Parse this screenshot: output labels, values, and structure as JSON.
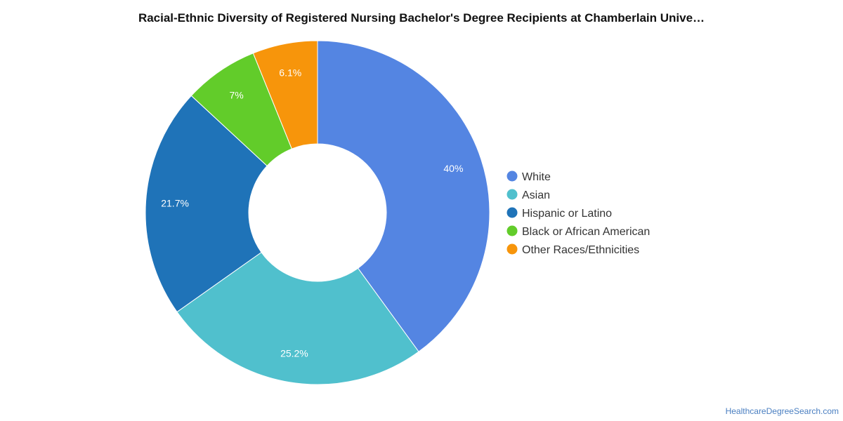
{
  "chart_data": {
    "type": "pie",
    "donut": true,
    "title": "Racial-Ethnic Diversity of Registered Nursing Bachelor's Degree Recipients at Chamberlain Unive…",
    "legend_position": "right",
    "slices": [
      {
        "name": "White",
        "value": 40.0,
        "label": "40%",
        "color": "#5485e2"
      },
      {
        "name": "Asian",
        "value": 25.2,
        "label": "25.2%",
        "color": "#50c0cd"
      },
      {
        "name": "Hispanic or Latino",
        "value": 21.7,
        "label": "21.7%",
        "color": "#1f73b8"
      },
      {
        "name": "Black or African American",
        "value": 7.0,
        "label": "7%",
        "color": "#62cc2a"
      },
      {
        "name": "Other Races/Ethnicities",
        "value": 6.1,
        "label": "6.1%",
        "color": "#f7950b"
      }
    ]
  },
  "source": "HealthcareDegreeSearch.com"
}
